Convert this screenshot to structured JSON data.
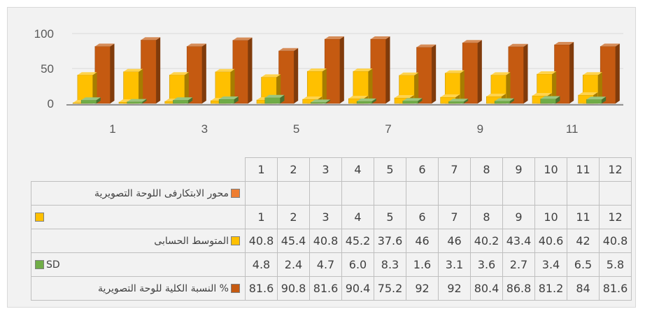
{
  "chart_data": {
    "type": "bar",
    "style": "3d-clustered-column",
    "x_tick_labels": [
      "1",
      "3",
      "5",
      "7",
      "9",
      "11"
    ],
    "y_ticks": [
      0,
      50,
      100
    ],
    "ylim": [
      0,
      100
    ],
    "categories": [
      "1",
      "2",
      "3",
      "4",
      "5",
      "6",
      "7",
      "8",
      "9",
      "10",
      "11",
      "12"
    ],
    "series": [
      {
        "name": "محور الابتكارفى اللوحة التصويرية",
        "color": "#ed7d31",
        "values": [
          null,
          null,
          null,
          null,
          null,
          null,
          null,
          null,
          null,
          null,
          null,
          null
        ],
        "display": [
          "",
          "",
          "",
          "",
          "",
          "",
          "",
          "",
          "",
          "",
          "",
          ""
        ]
      },
      {
        "name": "",
        "color": "#ffc000",
        "values": [
          1,
          2,
          3,
          4,
          5,
          6,
          7,
          8,
          9,
          10,
          11,
          12
        ],
        "display": [
          "1",
          "2",
          "3",
          "4",
          "5",
          "6",
          "7",
          "8",
          "9",
          "10",
          "11",
          "12"
        ]
      },
      {
        "name": "المتوسط الحسابى",
        "color": "#ffc000",
        "values": [
          40.8,
          45.4,
          40.8,
          45.2,
          37.6,
          46,
          46,
          40.2,
          43.4,
          40.6,
          42,
          40.8
        ],
        "display": [
          "40.8",
          "45.4",
          "40.8",
          "45.2",
          "37.6",
          "46",
          "46",
          "40.2",
          "43.4",
          "40.6",
          "42",
          "40.8"
        ]
      },
      {
        "name": "SD",
        "color": "#70ad47",
        "values": [
          4.8,
          2.4,
          4.7,
          6.0,
          8.3,
          1.6,
          3.1,
          3.6,
          2.7,
          3.4,
          6.5,
          5.8
        ],
        "display": [
          "4.8",
          "2.4",
          "4.7",
          "6.0",
          "8.3",
          "1.6",
          "3.1",
          "3.6",
          "2.7",
          "3.4",
          "6.5",
          "5.8"
        ]
      },
      {
        "name": "النسبة الكلية للوحة التصويرية  %",
        "color": "#c55a11",
        "values": [
          81.6,
          90.8,
          81.6,
          90.4,
          75.2,
          92,
          92,
          80.4,
          86.8,
          81.2,
          84,
          81.6
        ],
        "display": [
          "81.6",
          "90.8",
          "81.6",
          "90.4",
          "75.2",
          "92",
          "92",
          "80.4",
          "86.8",
          "81.2",
          "84",
          "81.6"
        ]
      }
    ],
    "grid": true,
    "legend": "data-table"
  }
}
